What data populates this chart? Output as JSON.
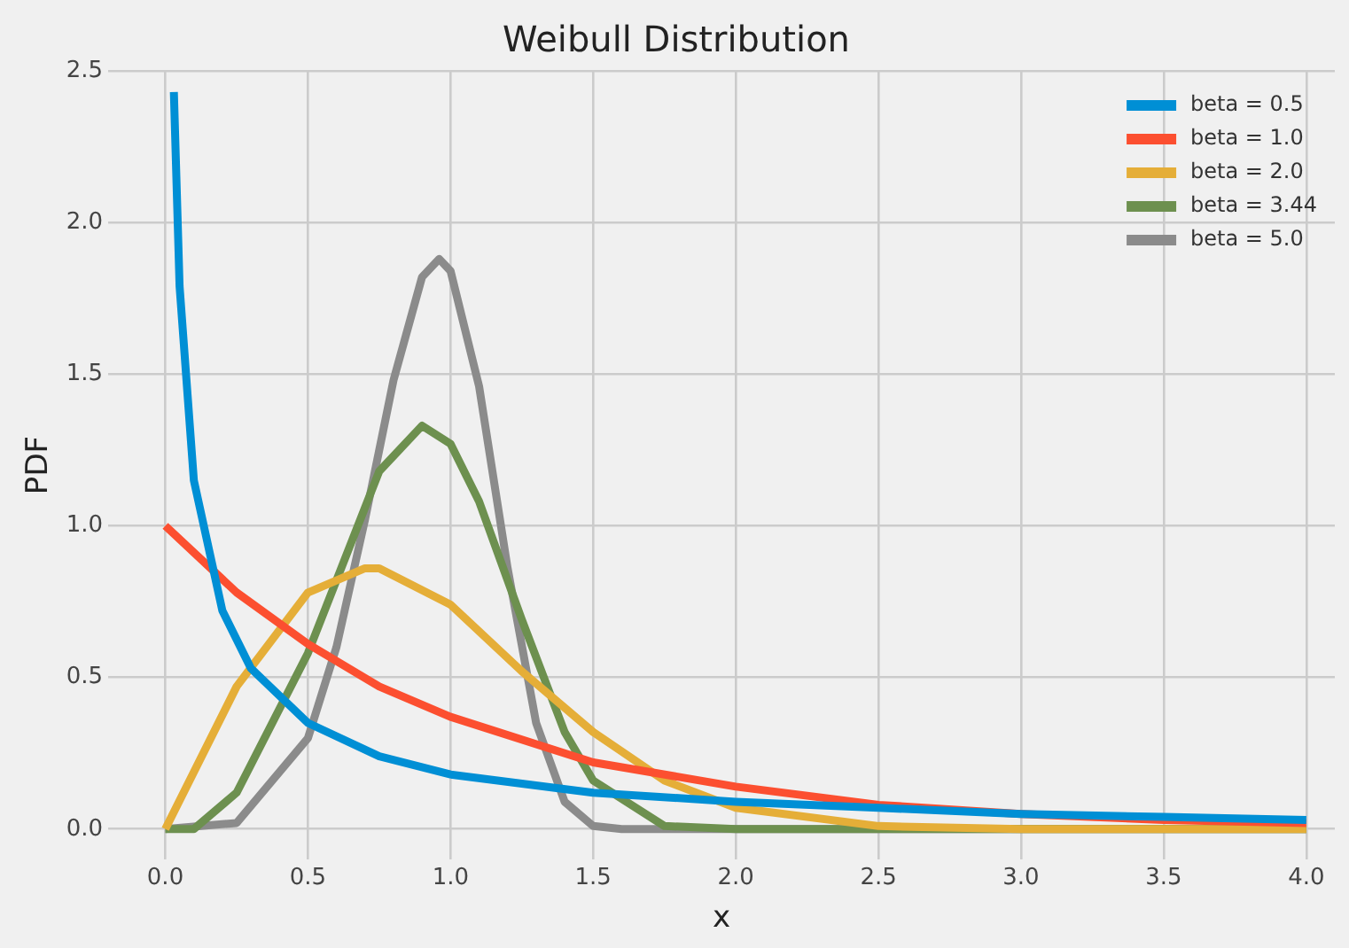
{
  "chart_data": {
    "type": "line",
    "title": "Weibull Distribution",
    "xlabel": "x",
    "ylabel": "PDF",
    "xlim": [
      -0.2,
      4.1
    ],
    "ylim": [
      -0.1,
      2.5
    ],
    "xticks": [
      {
        "value": 0,
        "label": "0.0"
      },
      {
        "value": 0.5,
        "label": "0.5"
      },
      {
        "value": 1,
        "label": "1.0"
      },
      {
        "value": 1.5,
        "label": "1.5"
      },
      {
        "value": 2,
        "label": "2.0"
      },
      {
        "value": 2.5,
        "label": "2.5"
      },
      {
        "value": 3,
        "label": "3.0"
      },
      {
        "value": 3.5,
        "label": "3.5"
      },
      {
        "value": 4,
        "label": "4.0"
      }
    ],
    "yticks": [
      {
        "value": 0,
        "label": "0.0"
      },
      {
        "value": 0.5,
        "label": "0.5"
      },
      {
        "value": 1,
        "label": "1.0"
      },
      {
        "value": 1.5,
        "label": "1.5"
      },
      {
        "value": 2,
        "label": "2.0"
      },
      {
        "value": 2.5,
        "label": "2.5"
      }
    ],
    "grid": true,
    "legend": "top right",
    "marker": "none",
    "line_style": "solid",
    "series": [
      {
        "name": "beta = 0.5",
        "color": "#008fd5",
        "x": [
          0.03,
          0.05,
          0.1,
          0.2,
          0.3,
          0.5,
          0.75,
          1,
          1.5,
          2,
          2.5,
          3,
          3.5,
          4
        ],
        "values": [
          2.43,
          1.79,
          1.15,
          0.72,
          0.53,
          0.35,
          0.24,
          0.18,
          0.12,
          0.09,
          0.07,
          0.05,
          0.04,
          0.03
        ]
      },
      {
        "name": "beta = 1.0",
        "color": "#fc4f30",
        "x": [
          0,
          0.25,
          0.5,
          0.75,
          1,
          1.5,
          2,
          2.5,
          3,
          3.5,
          4
        ],
        "values": [
          1.0,
          0.78,
          0.61,
          0.47,
          0.37,
          0.22,
          0.14,
          0.08,
          0.05,
          0.03,
          0.02
        ]
      },
      {
        "name": "beta = 2.0",
        "color": "#e5ae38",
        "x": [
          0,
          0.25,
          0.5,
          0.7,
          0.75,
          1,
          1.25,
          1.5,
          1.75,
          2,
          2.5,
          3,
          4
        ],
        "values": [
          0,
          0.47,
          0.78,
          0.86,
          0.86,
          0.74,
          0.52,
          0.32,
          0.16,
          0.07,
          0.01,
          0,
          0
        ]
      },
      {
        "name": "beta = 3.44",
        "color": "#6d904f",
        "x": [
          0,
          0.1,
          0.25,
          0.5,
          0.75,
          0.9,
          1,
          1.1,
          1.25,
          1.4,
          1.5,
          1.75,
          2,
          4
        ],
        "values": [
          0,
          0,
          0.12,
          0.58,
          1.18,
          1.33,
          1.27,
          1.08,
          0.69,
          0.32,
          0.16,
          0.01,
          0,
          0
        ]
      },
      {
        "name": "beta = 5.0",
        "color": "#8b8b8b",
        "x": [
          0,
          0.25,
          0.5,
          0.6,
          0.7,
          0.8,
          0.9,
          0.96,
          1,
          1.1,
          1.2,
          1.3,
          1.4,
          1.5,
          1.6,
          4
        ],
        "values": [
          0,
          0.02,
          0.3,
          0.6,
          1.02,
          1.48,
          1.82,
          1.88,
          1.84,
          1.46,
          0.86,
          0.35,
          0.09,
          0.01,
          0,
          0
        ]
      }
    ]
  }
}
